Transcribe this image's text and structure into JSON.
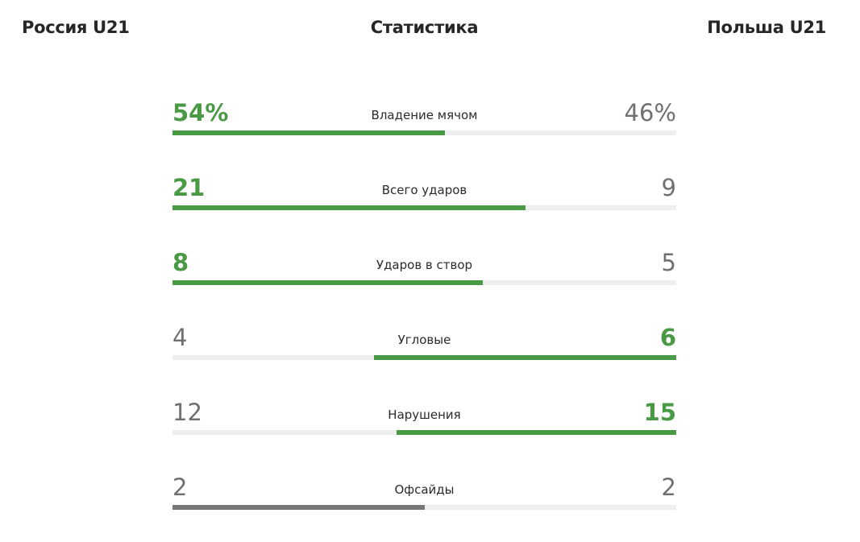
{
  "header": {
    "team_home": "Россия U21",
    "title": "Статистика",
    "team_away": "Польша U21"
  },
  "colors": {
    "win": "#4a9a45",
    "neutral_text": "#707070",
    "tie_bar": "#777777",
    "track": "#eeeeee"
  },
  "stats": [
    {
      "label": "Владение мячом",
      "home": "54%",
      "away": "46%",
      "home_value": 54,
      "away_value": 46,
      "winner": "home"
    },
    {
      "label": "Всего ударов",
      "home": "21",
      "away": "9",
      "home_value": 21,
      "away_value": 9,
      "winner": "home"
    },
    {
      "label": "Ударов в створ",
      "home": "8",
      "away": "5",
      "home_value": 8,
      "away_value": 5,
      "winner": "home"
    },
    {
      "label": "Угловые",
      "home": "4",
      "away": "6",
      "home_value": 4,
      "away_value": 6,
      "winner": "away"
    },
    {
      "label": "Нарушения",
      "home": "12",
      "away": "15",
      "home_value": 12,
      "away_value": 15,
      "winner": "away"
    },
    {
      "label": "Офсайды",
      "home": "2",
      "away": "2",
      "home_value": 2,
      "away_value": 2,
      "winner": "tie"
    }
  ]
}
